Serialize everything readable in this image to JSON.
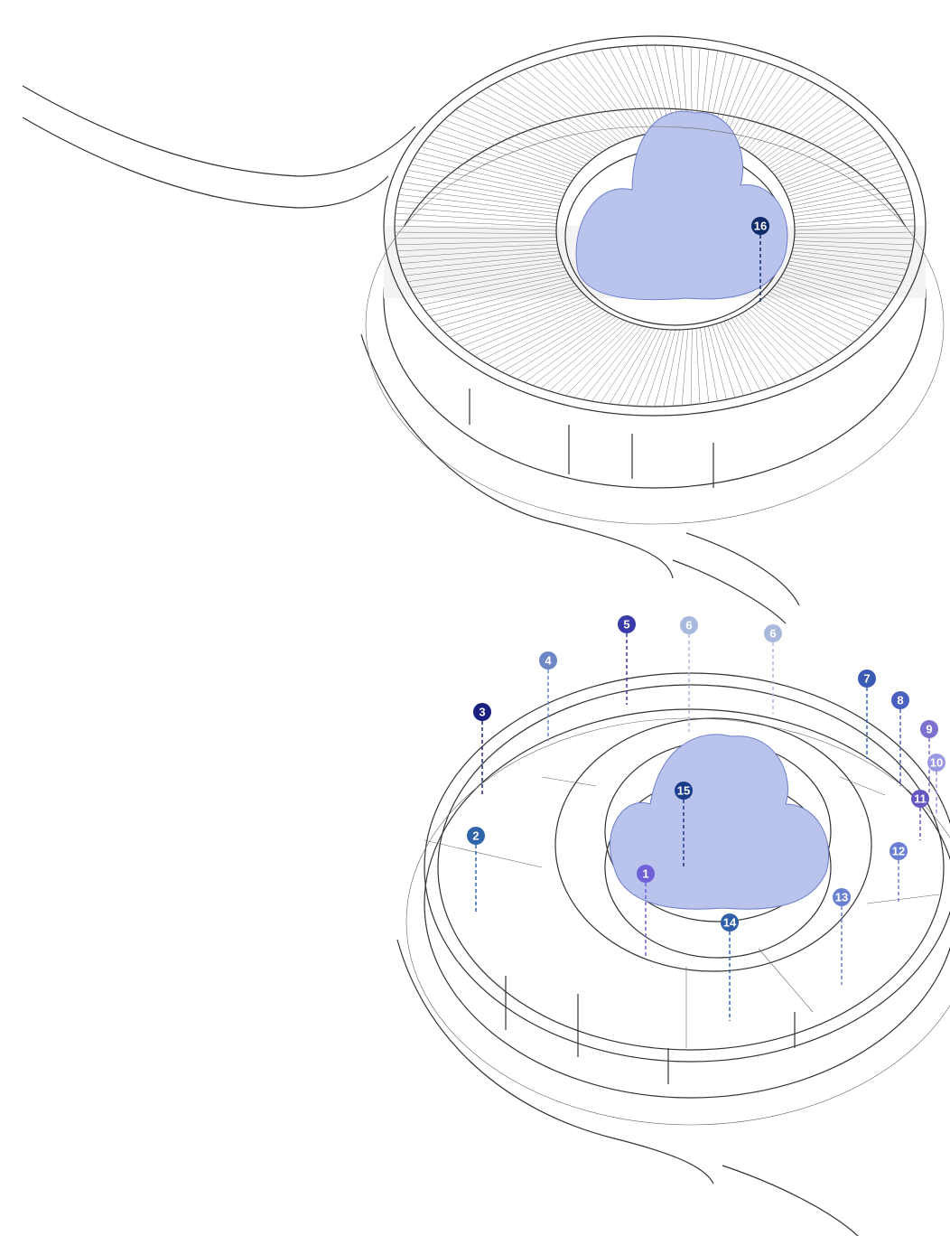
{
  "markers": [
    {
      "label": "16",
      "color": "#0d2a6b"
    },
    {
      "label": "5",
      "color": "#3a3aa8"
    },
    {
      "label": "6",
      "color": "#a9b8dd"
    },
    {
      "label": "6",
      "color": "#a9b8dd"
    },
    {
      "label": "4",
      "color": "#6f86c4"
    },
    {
      "label": "3",
      "color": "#1a2080"
    },
    {
      "label": "7",
      "color": "#3b5bb5"
    },
    {
      "label": "8",
      "color": "#4a60bf"
    },
    {
      "label": "9",
      "color": "#7b72d0"
    },
    {
      "label": "10",
      "color": "#9a98e0"
    },
    {
      "label": "11",
      "color": "#6358c0"
    },
    {
      "label": "2",
      "color": "#2f64a8"
    },
    {
      "label": "12",
      "color": "#6a7fd4"
    },
    {
      "label": "15",
      "color": "#1a3c8a"
    },
    {
      "label": "1",
      "color": "#7060d8"
    },
    {
      "label": "13",
      "color": "#6a80d0"
    },
    {
      "label": "14",
      "color": "#2e5fa8"
    }
  ]
}
